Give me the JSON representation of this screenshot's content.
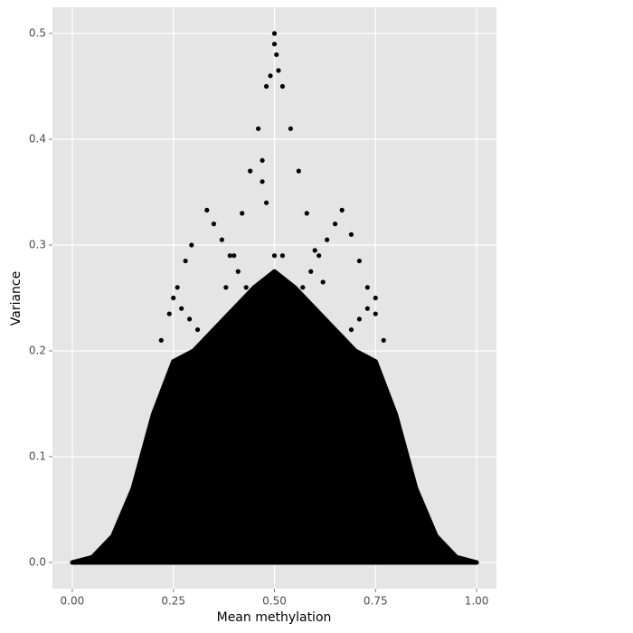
{
  "chart_data": {
    "type": "scatter",
    "xlabel": "Mean methylation",
    "ylabel": "Variance",
    "xlim": [
      -0.049,
      1.049
    ],
    "ylim": [
      -0.0248,
      0.5248
    ],
    "xticks": [
      {
        "value": 0,
        "label": "0.00"
      },
      {
        "value": 0.25,
        "label": "0.25"
      },
      {
        "value": 0.5,
        "label": "0.50"
      },
      {
        "value": 0.75,
        "label": "0.75"
      },
      {
        "value": 1,
        "label": "1.00"
      }
    ],
    "yticks": [
      {
        "value": 0,
        "label": "0.0"
      },
      0.1,
      0.2,
      0.3,
      0.4,
      0.5
    ],
    "grid": true,
    "color": "#000000",
    "panel_color": "#e5e5e5",
    "x": [
      0.22,
      0.24,
      0.26,
      0.28,
      0.295,
      0.25,
      0.27,
      0.29,
      0.31,
      0.33,
      0.333,
      0.35,
      0.37,
      0.39,
      0.41,
      0.43,
      0.38,
      0.4,
      0.42,
      0.44,
      0.46,
      0.48,
      0.49,
      0.5,
      0.5,
      0.505,
      0.51,
      0.52,
      0.54,
      0.56,
      0.58,
      0.6,
      0.62,
      0.667,
      0.65,
      0.63,
      0.61,
      0.59,
      0.57,
      0.75,
      0.73,
      0.71,
      0.69,
      0.67,
      0.69,
      0.71,
      0.73,
      0.75,
      0.77,
      0.47,
      0.47,
      0.48,
      0.52,
      0.5
    ],
    "values": [
      0.21,
      0.235,
      0.26,
      0.285,
      0.3,
      0.25,
      0.24,
      0.23,
      0.22,
      0.21,
      0.333,
      0.32,
      0.305,
      0.29,
      0.275,
      0.26,
      0.26,
      0.29,
      0.33,
      0.37,
      0.41,
      0.45,
      0.46,
      0.5,
      0.49,
      0.48,
      0.465,
      0.45,
      0.41,
      0.37,
      0.33,
      0.295,
      0.265,
      0.333,
      0.32,
      0.305,
      0.29,
      0.275,
      0.26,
      0.25,
      0.24,
      0.23,
      0.22,
      0.21,
      0.31,
      0.285,
      0.26,
      0.235,
      0.21,
      0.38,
      0.36,
      0.34,
      0.29,
      0.29
    ],
    "cloud": {
      "x": [
        0,
        0.05,
        0.1,
        0.15,
        0.2,
        0.25,
        0.3,
        0.35,
        0.4,
        0.45,
        0.5,
        0.55,
        0.6,
        0.65,
        0.7,
        0.75,
        0.8,
        0.85,
        0.9,
        0.95,
        1.0
      ],
      "values": [
        0,
        0.005,
        0.025,
        0.07,
        0.14,
        0.19,
        0.2,
        0.22,
        0.24,
        0.26,
        0.275,
        0.26,
        0.24,
        0.22,
        0.2,
        0.19,
        0.14,
        0.07,
        0.025,
        0.005,
        0
      ]
    }
  }
}
